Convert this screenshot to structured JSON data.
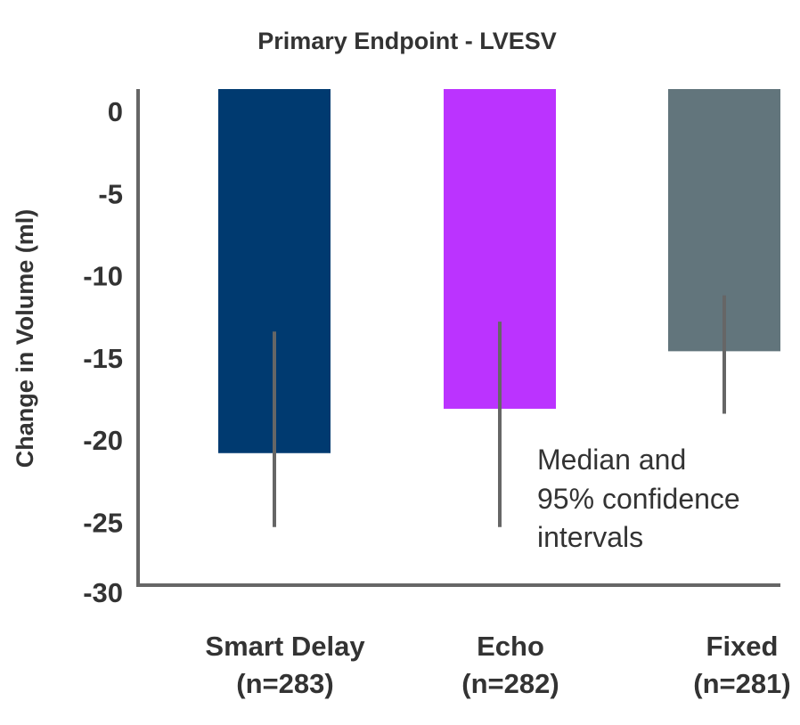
{
  "chart_data": {
    "type": "bar",
    "title": "Primary Endpoint - LVESV",
    "xlabel": "",
    "ylabel": "Change in Volume (ml)",
    "ylim": [
      -30,
      1
    ],
    "yticks": [
      "0",
      "-5",
      "-10",
      "-15",
      "-20",
      "-25",
      "-30"
    ],
    "ytick_values": [
      0,
      -5,
      -10,
      -15,
      -20,
      -25,
      -30
    ],
    "grid": false,
    "categories": [
      "Smart Delay (n=283)",
      "Echo (n=282)",
      "Fixed (n=281)"
    ],
    "category_lines": [
      [
        "Smart Delay",
        "(n=283)"
      ],
      [
        "Echo",
        "(n=282)"
      ],
      [
        "Fixed",
        "(n=281)"
      ]
    ],
    "values": [
      -20.8,
      -18.1,
      -14.6
    ],
    "ci_upper": [
      -13.4,
      -12.8,
      -11.2
    ],
    "ci_lower": [
      -25.3,
      -25.3,
      -18.4
    ],
    "colors": [
      "#003a70",
      "#bb33ff",
      "#62757c"
    ],
    "errorbar_color": "#666666",
    "annotation": [
      "Median and",
      "95% confidence",
      "intervals"
    ]
  }
}
